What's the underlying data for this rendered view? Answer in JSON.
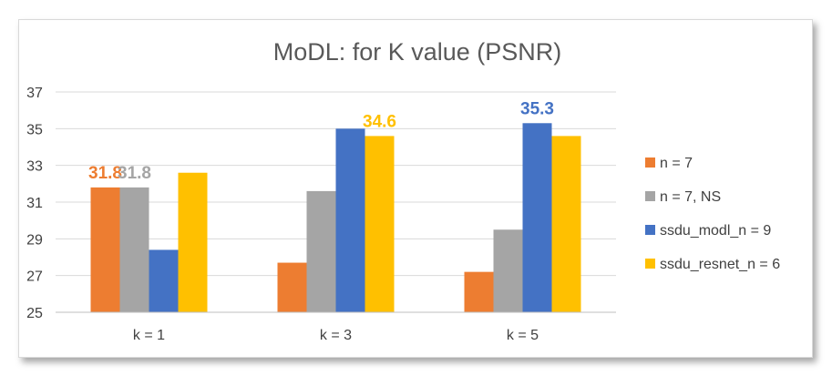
{
  "chart_data": {
    "type": "bar",
    "title": "MoDL: for K value (PSNR)",
    "xlabel": "",
    "ylabel": "",
    "categories": [
      "k = 1",
      "k = 3",
      "k = 5"
    ],
    "ylim": [
      25,
      37
    ],
    "yticks": [
      25,
      27,
      29,
      31,
      33,
      35,
      37
    ],
    "grid": true,
    "legend_position": "right",
    "series": [
      {
        "name": "n = 7",
        "color": "#ED7D31",
        "values": [
          31.8,
          27.7,
          27.2
        ]
      },
      {
        "name": "n = 7, NS",
        "color": "#A5A5A5",
        "values": [
          31.8,
          31.6,
          29.5
        ]
      },
      {
        "name": "ssdu_modl_n = 9",
        "color": "#4472C4",
        "values": [
          28.4,
          35.0,
          35.3
        ]
      },
      {
        "name": "ssdu_resnet_n = 6",
        "color": "#FFC000",
        "values": [
          32.6,
          34.6,
          34.6
        ]
      }
    ],
    "data_labels": [
      {
        "series": 0,
        "category": 0,
        "text": "31.8"
      },
      {
        "series": 1,
        "category": 0,
        "text": "31.8"
      },
      {
        "series": 3,
        "category": 1,
        "text": "34.6"
      },
      {
        "series": 2,
        "category": 2,
        "text": "35.3"
      }
    ]
  }
}
